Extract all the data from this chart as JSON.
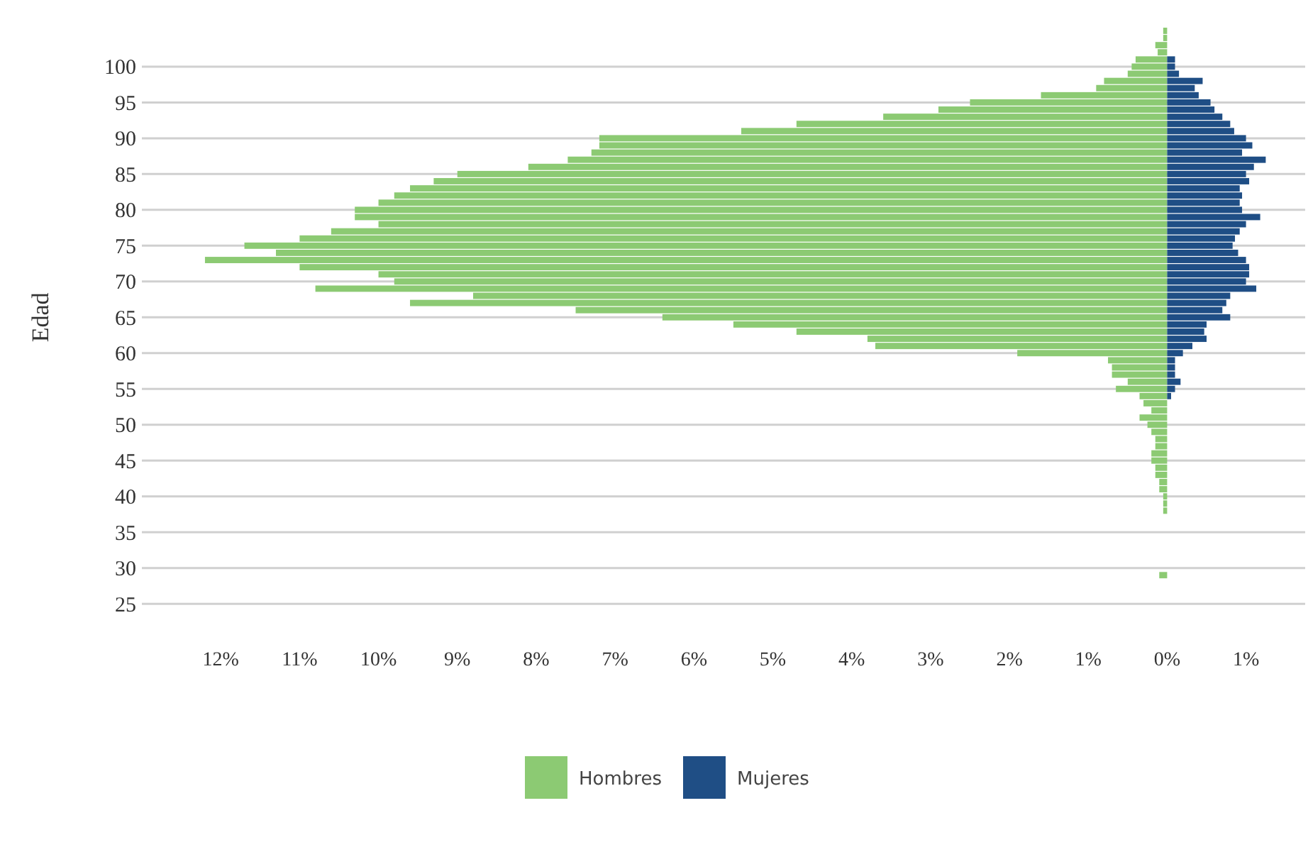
{
  "chart_data": {
    "type": "bar",
    "orientation": "horizontal",
    "stacked": true,
    "ylabel": "Edad",
    "categories": [
      null,
      null,
      null,
      null,
      null,
      "100",
      null,
      null,
      null,
      null,
      "95",
      null,
      null,
      null,
      null,
      "90",
      null,
      null,
      null,
      null,
      "85",
      null,
      null,
      null,
      null,
      "80",
      null,
      null,
      null,
      null,
      "75",
      null,
      null,
      null,
      null,
      "70",
      null,
      null,
      null,
      null,
      "65",
      null,
      null,
      null,
      null,
      "60",
      null,
      null,
      null,
      null,
      "55",
      null,
      null,
      null,
      null,
      "50",
      null,
      null,
      null,
      null,
      "45",
      null,
      null,
      null,
      null,
      "40",
      null,
      null,
      null,
      null,
      "35",
      null,
      null,
      null,
      null,
      "30",
      null,
      null,
      null,
      null,
      "25"
    ],
    "series": [
      {
        "name": "Hombres",
        "color": "#8cca73",
        "values": [
          -0.05,
          -0.05,
          -0.15,
          -0.12,
          -0.4,
          -0.45,
          -0.5,
          -0.8,
          -0.9,
          -1.6,
          -2.5,
          -2.9,
          -3.6,
          -4.7,
          -5.4,
          -7.2,
          -7.2,
          -7.3,
          -7.6,
          -8.1,
          -9.0,
          -9.3,
          -9.6,
          -9.8,
          -10.0,
          -10.3,
          -10.3,
          -10.0,
          -10.6,
          -11.0,
          -11.7,
          -11.3,
          -12.2,
          -11.0,
          -10.0,
          -9.8,
          -10.8,
          -8.8,
          -9.6,
          -7.5,
          -6.4,
          -5.5,
          -4.7,
          -3.8,
          -3.7,
          -1.9,
          -0.75,
          -0.7,
          -0.7,
          -0.5,
          -0.65,
          -0.35,
          -0.3,
          -0.2,
          -0.35,
          -0.25,
          -0.2,
          -0.15,
          -0.15,
          -0.2,
          -0.2,
          -0.15,
          -0.15,
          -0.1,
          -0.1,
          -0.05,
          -0.05,
          -0.05,
          null,
          null,
          null,
          null,
          null,
          null,
          null,
          null,
          -0.1,
          null,
          null,
          null,
          null
        ]
      },
      {
        "name": "Mujeres",
        "color": "#1f4e85",
        "values": [
          null,
          null,
          null,
          null,
          0.1,
          0.1,
          0.15,
          0.45,
          0.35,
          0.4,
          0.55,
          0.6,
          0.7,
          0.8,
          0.85,
          1.0,
          1.08,
          0.95,
          1.25,
          1.1,
          1.0,
          1.04,
          0.92,
          0.95,
          0.92,
          0.95,
          1.18,
          1.0,
          0.92,
          0.86,
          0.83,
          0.9,
          1.0,
          1.04,
          1.04,
          1.0,
          1.13,
          0.8,
          0.75,
          0.7,
          0.8,
          0.5,
          0.47,
          0.5,
          0.32,
          0.2,
          0.1,
          0.1,
          0.1,
          0.17,
          0.1,
          0.05,
          null,
          null,
          null,
          null,
          null,
          null,
          null,
          null,
          null,
          null,
          null,
          null,
          null,
          null,
          null,
          null,
          null,
          null,
          null,
          null,
          null,
          null,
          null,
          null,
          null,
          null,
          null,
          null,
          null
        ]
      }
    ],
    "xlim": [
      -13,
      1.75
    ],
    "xticks": [
      {
        "value": -12,
        "label": "12%"
      },
      {
        "value": -11,
        "label": "11%"
      },
      {
        "value": -10,
        "label": "10%"
      },
      {
        "value": -9,
        "label": "9%"
      },
      {
        "value": -8,
        "label": "8%"
      },
      {
        "value": -7,
        "label": "7%"
      },
      {
        "value": -6,
        "label": "6%"
      },
      {
        "value": -5,
        "label": "5%"
      },
      {
        "value": -4,
        "label": "4%"
      },
      {
        "value": -3,
        "label": "3%"
      },
      {
        "value": -2,
        "label": "2%"
      },
      {
        "value": -1,
        "label": "1%"
      },
      {
        "value": 0,
        "label": "0%"
      },
      {
        "value": 1,
        "label": "1%"
      }
    ],
    "grid": "y",
    "legend": "bottom"
  }
}
